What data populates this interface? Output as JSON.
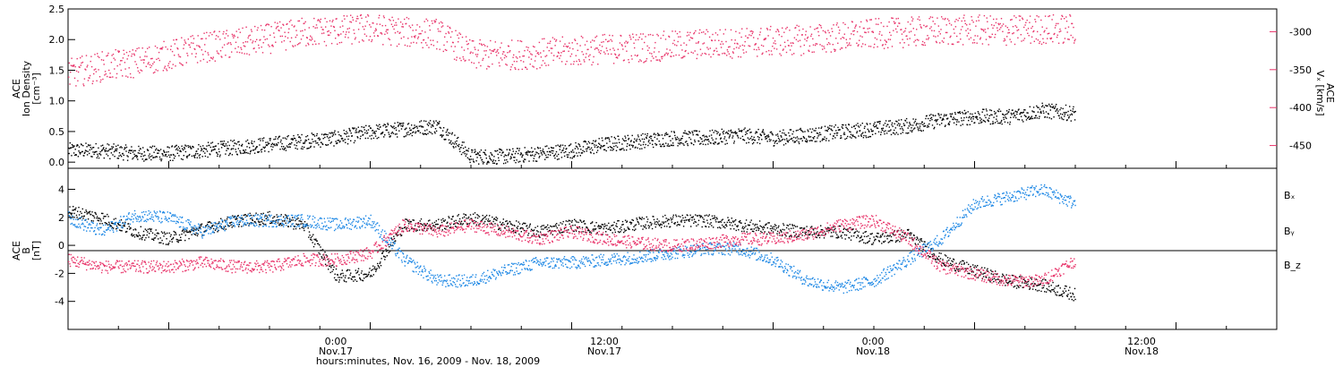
{
  "chart_data": [
    {
      "type": "scatter",
      "panel": "top",
      "ylabel_left": [
        "ACE",
        "Ion Density",
        "[cm⁻³]"
      ],
      "ylabel_right": [
        "ACE",
        "Vₓ [km/s]"
      ],
      "left_axis": {
        "ylim": [
          -0.1,
          2.5
        ],
        "ticks": [
          "0.0",
          "0.5",
          "1.0",
          "1.5",
          "2.0",
          "2.5"
        ]
      },
      "right_axis": {
        "ylim": [
          -480,
          -270
        ],
        "ticks": [
          "-450",
          "-400",
          "-350",
          "-300"
        ],
        "color": "#e8346a"
      },
      "series": [
        {
          "color": "#000000",
          "x_hours": [
            0,
            2,
            4,
            6,
            8,
            10,
            12,
            14,
            16,
            18,
            20,
            22,
            24,
            26,
            28,
            30,
            32,
            34,
            36,
            38,
            40,
            42,
            44,
            46,
            48,
            50,
            52,
            54,
            56,
            58,
            60
          ],
          "y": [
            0.2,
            0.2,
            0.15,
            0.15,
            0.2,
            0.25,
            0.3,
            0.35,
            0.4,
            0.5,
            0.55,
            0.6,
            0.1,
            0.1,
            0.15,
            0.2,
            0.3,
            0.35,
            0.4,
            0.4,
            0.45,
            0.4,
            0.45,
            0.5,
            0.55,
            0.6,
            0.7,
            0.75,
            0.75,
            0.85,
            0.8
          ]
        },
        {
          "color": "#e8346a",
          "x_hours": [
            0,
            2,
            4,
            6,
            8,
            10,
            12,
            14,
            16,
            18,
            20,
            22,
            24,
            26,
            28,
            30,
            32,
            34,
            36,
            38,
            40,
            42,
            44,
            46,
            48,
            50,
            52,
            54,
            56,
            58,
            60
          ],
          "y": [
            -355,
            -345,
            -340,
            -330,
            -320,
            -315,
            -308,
            -300,
            -298,
            -295,
            -300,
            -302,
            -330,
            -330,
            -328,
            -325,
            -322,
            -320,
            -318,
            -315,
            -314,
            -312,
            -310,
            -306,
            -302,
            -300,
            -298,
            -297,
            -298,
            -296,
            -296
          ]
        }
      ]
    },
    {
      "type": "scatter",
      "panel": "bottom",
      "ylabel_left": [
        "ACE",
        "B",
        "[nT]"
      ],
      "left_axis": {
        "ylim": [
          -6,
          5.5
        ],
        "ticks": [
          "-4",
          "-2",
          "0",
          "2",
          "4"
        ]
      },
      "legend": [
        {
          "label": "Bₓ",
          "color": "#000000"
        },
        {
          "label": "Bᵧ",
          "color": "#1e88e5"
        },
        {
          "label": "B_z",
          "color": "#e8346a"
        }
      ],
      "series": [
        {
          "name": "Bₓ",
          "color": "#000000",
          "x_hours": [
            0,
            2,
            4,
            6,
            8,
            10,
            12,
            14,
            16,
            18,
            20,
            22,
            24,
            26,
            28,
            30,
            32,
            34,
            36,
            38,
            40,
            42,
            44,
            46,
            48,
            50,
            52,
            54,
            56,
            58,
            60
          ],
          "y": [
            2.5,
            2.0,
            1.0,
            0.5,
            1.2,
            1.8,
            2.0,
            1.5,
            -2.2,
            -2.0,
            1.5,
            1.5,
            2.0,
            1.5,
            1.0,
            1.5,
            1.2,
            1.6,
            1.8,
            1.8,
            1.5,
            1.2,
            1.0,
            1.0,
            0.5,
            0.8,
            -1.0,
            -1.8,
            -2.5,
            -2.8,
            -3.5
          ]
        },
        {
          "name": "Bᵧ",
          "color": "#1e88e5",
          "x_hours": [
            0,
            2,
            4,
            6,
            8,
            10,
            12,
            14,
            16,
            18,
            20,
            22,
            24,
            26,
            28,
            30,
            32,
            34,
            36,
            38,
            40,
            42,
            44,
            46,
            48,
            50,
            52,
            54,
            56,
            58,
            60
          ],
          "y": [
            2.0,
            1.0,
            2.2,
            2.0,
            1.0,
            1.8,
            1.8,
            1.8,
            1.5,
            1.8,
            -1.0,
            -2.5,
            -2.5,
            -1.8,
            -1.2,
            -1.2,
            -1.0,
            -0.8,
            -0.5,
            -0.2,
            -0.2,
            -1.0,
            -2.5,
            -3.0,
            -2.5,
            -1.0,
            0.5,
            3.0,
            3.5,
            4.0,
            3.0
          ]
        },
        {
          "name": "B_z",
          "color": "#e8346a",
          "x_hours": [
            0,
            2,
            4,
            6,
            8,
            10,
            12,
            14,
            16,
            18,
            20,
            22,
            24,
            26,
            28,
            30,
            32,
            34,
            36,
            38,
            40,
            42,
            44,
            46,
            48,
            50,
            52,
            54,
            56,
            58,
            60
          ],
          "y": [
            -1.0,
            -1.5,
            -1.5,
            -1.5,
            -1.2,
            -1.5,
            -1.5,
            -1.0,
            -1.0,
            -0.5,
            1.5,
            1.0,
            1.5,
            1.0,
            0.5,
            1.0,
            0.5,
            0.2,
            0.0,
            0.2,
            0.5,
            0.5,
            0.8,
            1.5,
            1.8,
            0.5,
            -1.5,
            -2.0,
            -2.5,
            -2.5,
            -1.0
          ]
        }
      ]
    }
  ],
  "x_axis": {
    "range_hours": [
      0,
      72
    ],
    "tick_labels": [
      {
        "time": "0:00",
        "date": "Nov.17",
        "hour": 18
      },
      {
        "time": "12:00",
        "date": "Nov.17",
        "hour": 30
      },
      {
        "time": "0:00",
        "date": "Nov.18",
        "hour": 42
      },
      {
        "time": "12:00",
        "date": "Nov.18",
        "hour": 54
      }
    ],
    "title": "hours:minutes, Nov. 16, 2009 - Nov. 18, 2009"
  }
}
